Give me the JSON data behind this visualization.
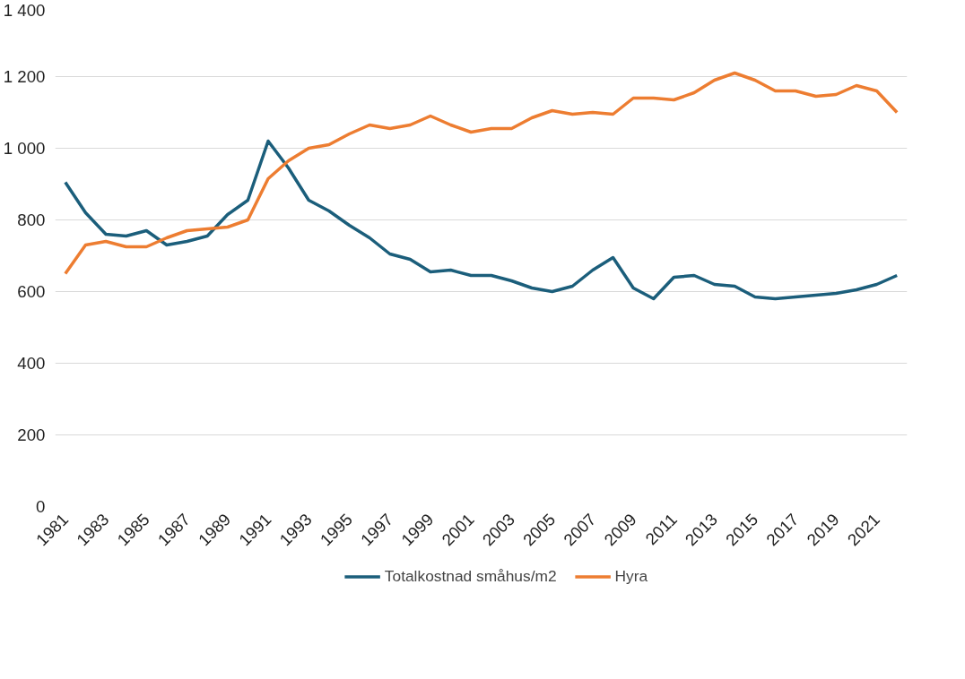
{
  "chart_data": {
    "type": "line",
    "x": [
      1981,
      1982,
      1983,
      1984,
      1985,
      1986,
      1987,
      1988,
      1989,
      1990,
      1991,
      1992,
      1993,
      1994,
      1995,
      1996,
      1997,
      1998,
      1999,
      2000,
      2001,
      2002,
      2003,
      2004,
      2005,
      2006,
      2007,
      2008,
      2009,
      2010,
      2011,
      2012,
      2013,
      2014,
      2015,
      2016,
      2017,
      2018,
      2019,
      2020,
      2021,
      2022
    ],
    "series": [
      {
        "name": "Totalkostnad småhus/m2",
        "color": "#1b5e7b",
        "values": [
          905,
          820,
          760,
          755,
          770,
          730,
          740,
          755,
          815,
          855,
          1020,
          945,
          855,
          825,
          785,
          750,
          705,
          690,
          655,
          660,
          645,
          645,
          630,
          610,
          600,
          615,
          660,
          695,
          610,
          580,
          640,
          645,
          620,
          615,
          585,
          580,
          585,
          590,
          595,
          605,
          620,
          645
        ]
      },
      {
        "name": "Hyra",
        "color": "#ed7d31",
        "values": [
          650,
          730,
          740,
          725,
          725,
          750,
          770,
          775,
          780,
          800,
          915,
          965,
          1000,
          1010,
          1040,
          1065,
          1055,
          1065,
          1090,
          1065,
          1045,
          1055,
          1055,
          1085,
          1105,
          1095,
          1100,
          1095,
          1140,
          1140,
          1135,
          1155,
          1190,
          1210,
          1190,
          1160,
          1160,
          1145,
          1150,
          1175,
          1160,
          1100
        ]
      }
    ],
    "xlim": [
      1980.5,
      2022.5
    ],
    "xticks": [
      1981,
      1983,
      1985,
      1987,
      1989,
      1991,
      1993,
      1995,
      1997,
      1999,
      2001,
      2003,
      2005,
      2007,
      2009,
      2011,
      2013,
      2015,
      2017,
      2019,
      2021
    ],
    "ylim": [
      0,
      1400
    ],
    "yticks": [
      0,
      200,
      400,
      600,
      800,
      {
        "value": 1000,
        "label": "1 000"
      },
      {
        "value": 1200,
        "label": "1 200"
      },
      {
        "value": 1400,
        "label": "1 400"
      }
    ],
    "grid": "y",
    "legend": "bottom",
    "marker": "none",
    "line_style": "solid"
  }
}
